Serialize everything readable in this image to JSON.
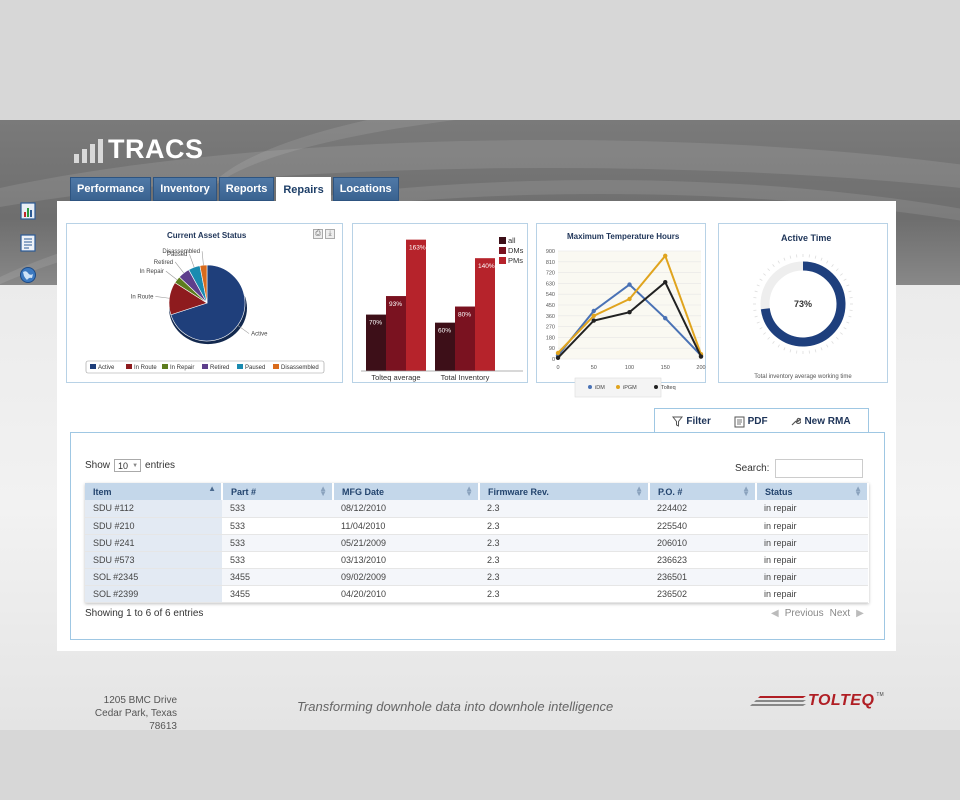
{
  "app": {
    "title": "TRACS"
  },
  "tabs": [
    {
      "label": "Performance",
      "active": false
    },
    {
      "label": "Inventory",
      "active": false
    },
    {
      "label": "Reports",
      "active": false
    },
    {
      "label": "Repairs",
      "active": true
    },
    {
      "label": "Locations",
      "active": false
    }
  ],
  "side_icons": [
    "dashboard-icon",
    "report-list-icon",
    "globe-icon"
  ],
  "colors": {
    "tab_blue": "#3f6896",
    "accent_navy": "#1e3f78",
    "brand_red": "#b01e24"
  },
  "chart_data": [
    {
      "type": "pie",
      "title": "Current Asset Status",
      "slices": [
        {
          "label": "Active",
          "value": 70,
          "color": "#1f3f7b"
        },
        {
          "label": "In Route",
          "value": 14,
          "color": "#8e1b1e"
        },
        {
          "label": "In Repair",
          "value": 3,
          "color": "#5d7d1e"
        },
        {
          "label": "Retired",
          "value": 5,
          "color": "#5e3f8c"
        },
        {
          "label": "Paused",
          "value": 5,
          "color": "#1a8bb0"
        },
        {
          "label": "Disassembled",
          "value": 3,
          "color": "#d96b1c"
        }
      ],
      "legend": "bottom"
    },
    {
      "type": "bar",
      "categories": [
        "Tolteq average",
        "Total Inventory"
      ],
      "series": [
        {
          "name": "all",
          "values": [
            70,
            60
          ],
          "color": "#3d0f18"
        },
        {
          "name": "DMs",
          "values": [
            93,
            80
          ],
          "color": "#7a1220"
        },
        {
          "name": "PMs",
          "values": [
            163,
            140
          ],
          "color": "#b6232b"
        }
      ],
      "data_labels": [
        "70%",
        "93%",
        "163%",
        "60%",
        "80%",
        "140%"
      ],
      "legend": "top-right",
      "ylim": [
        0,
        170
      ]
    },
    {
      "type": "line",
      "title": "Maximum Temperature Hours",
      "x": [
        0,
        50,
        100,
        150,
        200
      ],
      "yticks": [
        0,
        90,
        180,
        270,
        360,
        450,
        540,
        630,
        720,
        810,
        900
      ],
      "ylim": [
        0,
        900
      ],
      "series": [
        {
          "name": "iDM",
          "values": [
            30,
            400,
            620,
            340,
            30
          ],
          "color": "#4a72b5"
        },
        {
          "name": "iPGM",
          "values": [
            50,
            360,
            500,
            860,
            40
          ],
          "color": "#e0a41e"
        },
        {
          "name": "Tolteq",
          "values": [
            10,
            320,
            390,
            640,
            20
          ],
          "color": "#222222"
        }
      ],
      "legend": "bottom"
    },
    {
      "type": "donut",
      "title": "Active Time",
      "value": 73,
      "value_label": "73%",
      "caption": "Total inventory average working time",
      "color": "#1e3f7d"
    }
  ],
  "panel_tabs": [
    {
      "label": "Filter",
      "icon": "filter-icon"
    },
    {
      "label": "PDF",
      "icon": "pdf-icon"
    },
    {
      "label": "New RMA",
      "icon": "wrench-icon"
    }
  ],
  "table": {
    "show_label": "Show",
    "page_size": "10",
    "entries_label": "entries",
    "search_label": "Search:",
    "search_value": "",
    "columns": [
      "Item",
      "Part #",
      "MFG Date",
      "Firmware Rev.",
      "P.O. #",
      "Status"
    ],
    "rows": [
      [
        "SDU #112",
        "533",
        "08/12/2010",
        "2.3",
        "224402",
        "in repair"
      ],
      [
        "SDU #210",
        "533",
        "11/04/2010",
        "2.3",
        "225540",
        "in repair"
      ],
      [
        "SDU #241",
        "533",
        "05/21/2009",
        "2.3",
        "206010",
        "in repair"
      ],
      [
        "SDU #573",
        "533",
        "03/13/2010",
        "2.3",
        "236623",
        "in repair"
      ],
      [
        "SOL #2345",
        "3455",
        "09/02/2009",
        "2.3",
        "236501",
        "in repair"
      ],
      [
        "SOL #2399",
        "3455",
        "04/20/2010",
        "2.3",
        "236502",
        "in repair"
      ]
    ],
    "info": "Showing 1 to 6 of 6 entries",
    "prev_label": "Previous",
    "next_label": "Next"
  },
  "footer": {
    "address_line1": "1205 BMC Drive",
    "address_line2": "Cedar Park, Texas 78613",
    "tagline": "Transforming downhole data into downhole intelligence",
    "brand": "TOLTEQ",
    "trademark": "TM"
  }
}
